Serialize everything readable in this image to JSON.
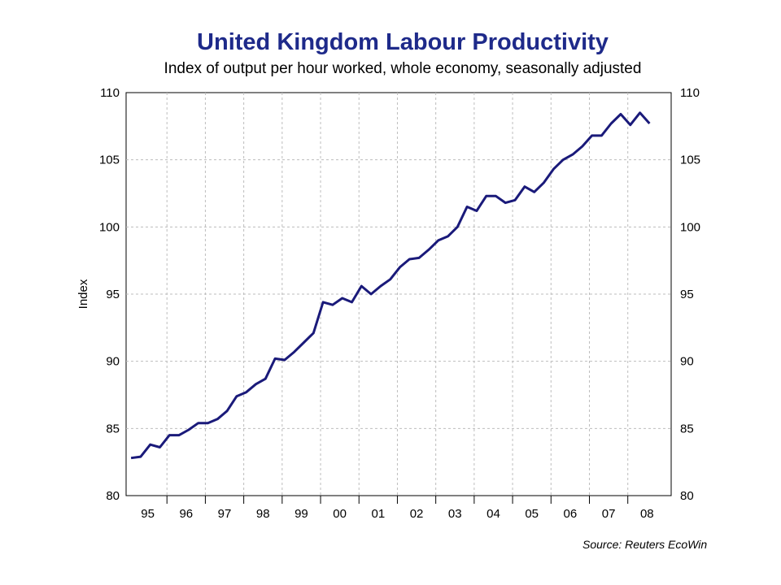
{
  "title": "United Kingdom Labour Productivity",
  "subtitle": "Index of output per hour worked, whole economy, seasonally adjusted",
  "source": "Source: Reuters EcoWin",
  "chart_data": {
    "type": "line",
    "title": "United Kingdom Labour Productivity",
    "subtitle": "Index of output per hour worked, whole economy, seasonally adjusted",
    "ylabel": "Index",
    "xlabel": "",
    "ylim": [
      80,
      110
    ],
    "yticks": [
      80,
      85,
      90,
      95,
      100,
      105,
      110
    ],
    "y_axis_both_sides": true,
    "grid": true,
    "legend": "none",
    "xticks": [
      "95",
      "96",
      "97",
      "98",
      "99",
      "00",
      "01",
      "02",
      "03",
      "04",
      "05",
      "06",
      "07",
      "08"
    ],
    "series": [
      {
        "color": "#1a1a7a",
        "x_start": "1995 Q1",
        "frequency": "quarterly",
        "values": [
          82.8,
          82.9,
          83.8,
          83.6,
          84.5,
          84.5,
          84.9,
          85.4,
          85.4,
          85.7,
          86.3,
          87.4,
          87.7,
          88.3,
          88.7,
          90.2,
          90.1,
          90.7,
          91.4,
          92.1,
          94.4,
          94.2,
          94.7,
          94.4,
          95.6,
          95.0,
          95.6,
          96.1,
          97.0,
          97.6,
          97.7,
          98.3,
          99.0,
          99.3,
          100.0,
          101.5,
          101.2,
          102.3,
          102.3,
          101.8,
          102.0,
          103.0,
          102.6,
          103.3,
          104.3,
          105.0,
          105.4,
          106.0,
          106.8,
          106.8,
          107.7,
          108.4,
          107.6,
          108.5,
          107.7
        ]
      }
    ]
  }
}
